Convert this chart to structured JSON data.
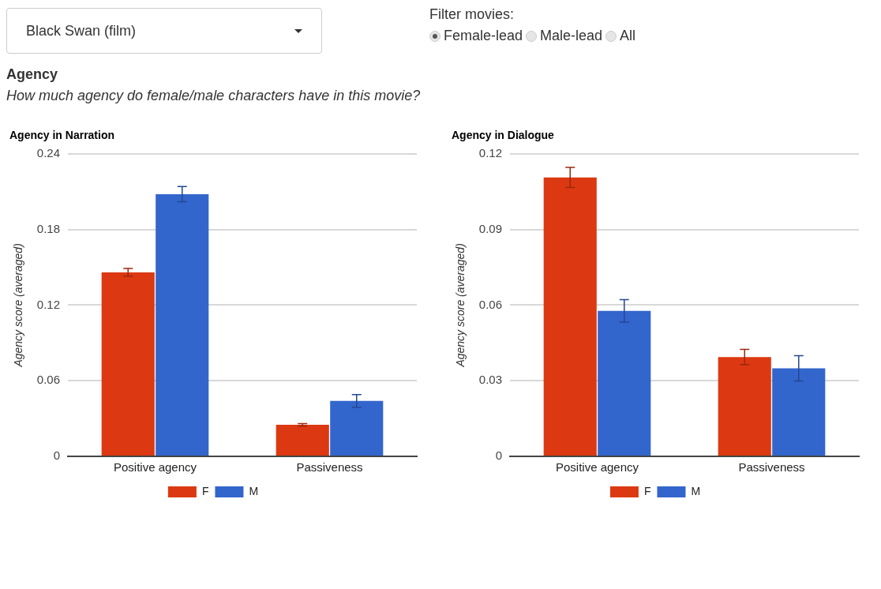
{
  "chart_data": [
    {
      "type": "other",
      "title": "Agency",
      "subtitle": "How much agency do female/male characters have in this movie?",
      "annotations": [
        "Black Swan (film)",
        "Filter movies:",
        "Female-lead",
        "Male-lead",
        "All"
      ]
    },
    {
      "type": "bar",
      "title": "Agency in Narration",
      "ylabel": "Agency score (averaged)",
      "categories": [
        "Positive agency",
        "Passiveness"
      ],
      "ylim": [
        0,
        0.24
      ],
      "yticks": [
        0,
        0.06,
        0.12,
        0.18,
        0.24
      ],
      "grid": "y",
      "legend": "bottom",
      "series": [
        {
          "name": "F",
          "color": "#dc3912",
          "values": [
            0.146,
            0.025
          ],
          "errors": [
            0.003,
            0.001
          ]
        },
        {
          "name": "M",
          "color": "#3366cc",
          "values": [
            0.208,
            0.044
          ],
          "errors": [
            0.006,
            0.005
          ]
        }
      ]
    },
    {
      "type": "bar",
      "title": "Agency in Dialogue",
      "ylabel": "Agency score (averaged)",
      "categories": [
        "Positive agency",
        "Passiveness"
      ],
      "ylim": [
        0,
        0.12
      ],
      "yticks": [
        0,
        0.03,
        0.06,
        0.09,
        0.12
      ],
      "grid": "y",
      "legend": "bottom",
      "series": [
        {
          "name": "F",
          "color": "#dc3912",
          "values": [
            0.1106,
            0.0394
          ],
          "errors": [
            0.004,
            0.003
          ]
        },
        {
          "name": "M",
          "color": "#3366cc",
          "values": [
            0.0577,
            0.0349
          ],
          "errors": [
            0.0045,
            0.005
          ]
        }
      ]
    }
  ]
}
